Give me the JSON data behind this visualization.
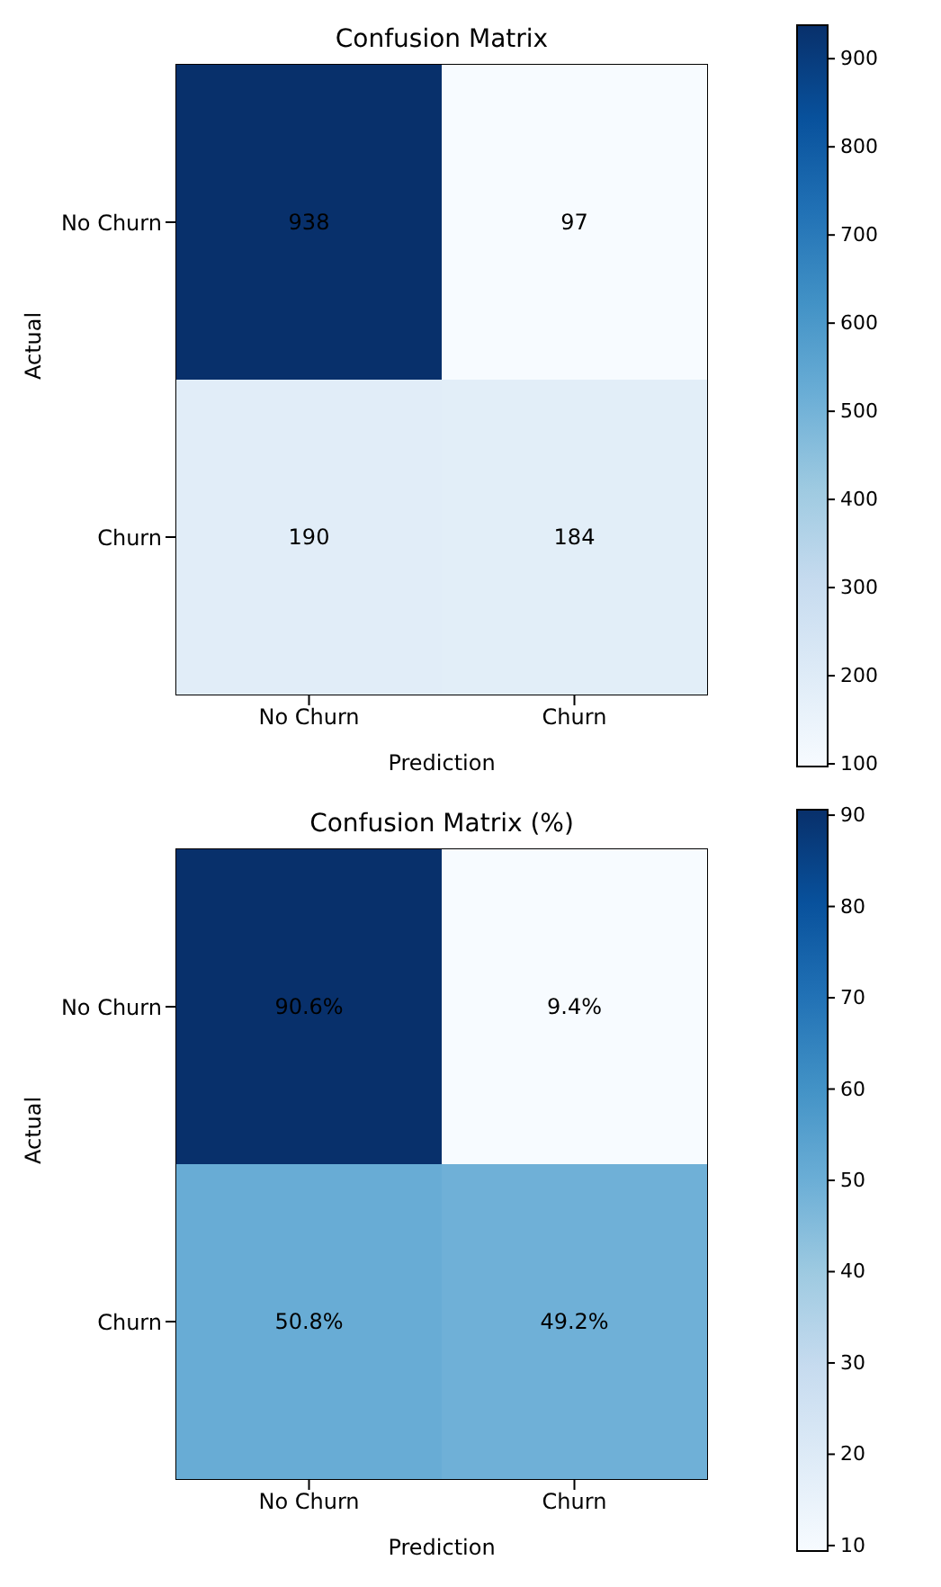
{
  "chart_data": [
    {
      "type": "heatmap",
      "title": "Confusion Matrix",
      "xlabel": "Prediction",
      "ylabel": "Actual",
      "categories": [
        "No Churn",
        "Churn"
      ],
      "y_categories": [
        "No Churn",
        "Churn"
      ],
      "cells": [
        [
          938,
          97
        ],
        [
          190,
          184
        ]
      ],
      "data_labels": true,
      "clim": [
        97,
        938
      ],
      "cticks": [
        100,
        200,
        300,
        400,
        500,
        600,
        700,
        800,
        900
      ]
    },
    {
      "type": "heatmap",
      "title": "Confusion Matrix (%)",
      "xlabel": "Prediction",
      "ylabel": "Actual",
      "categories": [
        "No Churn",
        "Churn"
      ],
      "y_categories": [
        "No Churn",
        "Churn"
      ],
      "cells": [
        [
          90.6,
          9.4
        ],
        [
          50.8,
          49.2
        ]
      ],
      "cell_labels": [
        [
          "90.6%",
          "9.4%"
        ],
        [
          "50.8%",
          "49.2%"
        ]
      ],
      "clim": [
        9.4,
        90.6
      ],
      "cticks": [
        10,
        20,
        30,
        40,
        50,
        60,
        70,
        80,
        90
      ]
    }
  ]
}
